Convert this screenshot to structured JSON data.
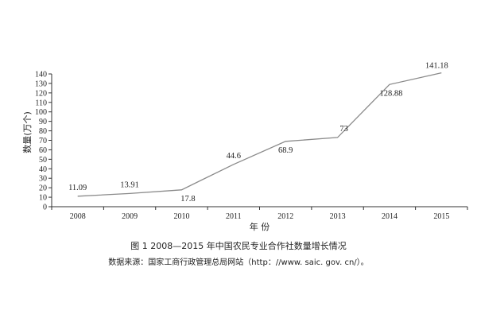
{
  "chart_data": {
    "type": "line",
    "title": "",
    "xlabel": "年  份",
    "ylabel": "数量(万个)",
    "categories": [
      "2008",
      "2009",
      "2010",
      "2011",
      "2012",
      "2013",
      "2014",
      "2015"
    ],
    "series": [
      {
        "name": "",
        "values": [
          11.09,
          13.91,
          17.8,
          44.6,
          68.9,
          73,
          128.88,
          141.18
        ]
      }
    ],
    "data_labels": [
      "11.09",
      "13.91",
      "17.8",
      "44.6",
      "68.9",
      "73",
      "128.88",
      "141.18"
    ],
    "ylim": [
      0,
      140
    ],
    "yticks": [
      0,
      10,
      20,
      30,
      40,
      50,
      60,
      70,
      80,
      90,
      100,
      110,
      120,
      130,
      140
    ],
    "grid": false,
    "line_color": "#8a8a8a"
  },
  "caption": {
    "title": "图 1   2008—2015 年中国农民专业合作社数量增长情况",
    "source": "数据来源：国家工商行政管理总局网站（http：//www. saic. gov. cn/）。"
  }
}
